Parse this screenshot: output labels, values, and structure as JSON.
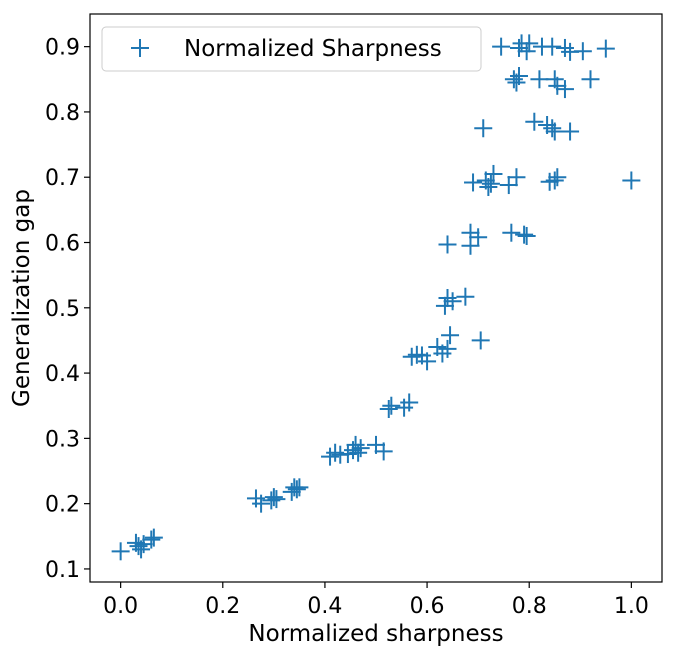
{
  "chart_data": {
    "type": "scatter",
    "xlabel": "Normalized sharpness",
    "ylabel": "Generalization gap",
    "xlim": [
      -0.06,
      1.06
    ],
    "ylim": [
      0.08,
      0.95
    ],
    "x_ticks": [
      "0.0",
      "0.2",
      "0.4",
      "0.6",
      "0.8",
      "1.0"
    ],
    "y_ticks": [
      "0.1",
      "0.2",
      "0.3",
      "0.4",
      "0.5",
      "0.6",
      "0.7",
      "0.8",
      "0.9"
    ],
    "legend": {
      "position": "top-left",
      "label": "Normalized Sharpness"
    },
    "marker": "plus",
    "color": "#1f77b4",
    "series": [
      {
        "name": "Normalized Sharpness",
        "points": [
          [
            0.0,
            0.127
          ],
          [
            0.03,
            0.14
          ],
          [
            0.035,
            0.135
          ],
          [
            0.04,
            0.13
          ],
          [
            0.045,
            0.138
          ],
          [
            0.06,
            0.145
          ],
          [
            0.065,
            0.148
          ],
          [
            0.265,
            0.208
          ],
          [
            0.275,
            0.2
          ],
          [
            0.295,
            0.205
          ],
          [
            0.3,
            0.21
          ],
          [
            0.305,
            0.207
          ],
          [
            0.335,
            0.218
          ],
          [
            0.34,
            0.225
          ],
          [
            0.345,
            0.222
          ],
          [
            0.35,
            0.225
          ],
          [
            0.41,
            0.272
          ],
          [
            0.42,
            0.278
          ],
          [
            0.43,
            0.275
          ],
          [
            0.445,
            0.276
          ],
          [
            0.455,
            0.282
          ],
          [
            0.46,
            0.29
          ],
          [
            0.465,
            0.278
          ],
          [
            0.47,
            0.285
          ],
          [
            0.5,
            0.29
          ],
          [
            0.515,
            0.28
          ],
          [
            0.525,
            0.345
          ],
          [
            0.53,
            0.35
          ],
          [
            0.555,
            0.347
          ],
          [
            0.565,
            0.355
          ],
          [
            0.57,
            0.425
          ],
          [
            0.58,
            0.428
          ],
          [
            0.59,
            0.427
          ],
          [
            0.6,
            0.418
          ],
          [
            0.62,
            0.44
          ],
          [
            0.63,
            0.43
          ],
          [
            0.64,
            0.437
          ],
          [
            0.645,
            0.458
          ],
          [
            0.635,
            0.503
          ],
          [
            0.64,
            0.515
          ],
          [
            0.65,
            0.51
          ],
          [
            0.675,
            0.517
          ],
          [
            0.705,
            0.45
          ],
          [
            0.64,
            0.597
          ],
          [
            0.685,
            0.595
          ],
          [
            0.685,
            0.615
          ],
          [
            0.7,
            0.608
          ],
          [
            0.765,
            0.615
          ],
          [
            0.79,
            0.612
          ],
          [
            0.795,
            0.61
          ],
          [
            0.69,
            0.692
          ],
          [
            0.715,
            0.695
          ],
          [
            0.72,
            0.685
          ],
          [
            0.73,
            0.705
          ],
          [
            0.725,
            0.69
          ],
          [
            0.76,
            0.688
          ],
          [
            0.775,
            0.7
          ],
          [
            0.84,
            0.693
          ],
          [
            0.85,
            0.695
          ],
          [
            0.855,
            0.7
          ],
          [
            1.0,
            0.695
          ],
          [
            0.71,
            0.775
          ],
          [
            0.81,
            0.785
          ],
          [
            0.835,
            0.78
          ],
          [
            0.845,
            0.775
          ],
          [
            0.85,
            0.77
          ],
          [
            0.88,
            0.77
          ],
          [
            0.77,
            0.85
          ],
          [
            0.775,
            0.845
          ],
          [
            0.78,
            0.855
          ],
          [
            0.82,
            0.85
          ],
          [
            0.85,
            0.85
          ],
          [
            0.855,
            0.84
          ],
          [
            0.87,
            0.835
          ],
          [
            0.92,
            0.85
          ],
          [
            0.745,
            0.9
          ],
          [
            0.78,
            0.898
          ],
          [
            0.785,
            0.905
          ],
          [
            0.795,
            0.893
          ],
          [
            0.8,
            0.905
          ],
          [
            0.825,
            0.9
          ],
          [
            0.845,
            0.9
          ],
          [
            0.87,
            0.898
          ],
          [
            0.88,
            0.892
          ],
          [
            0.905,
            0.893
          ],
          [
            0.95,
            0.897
          ]
        ]
      }
    ]
  }
}
